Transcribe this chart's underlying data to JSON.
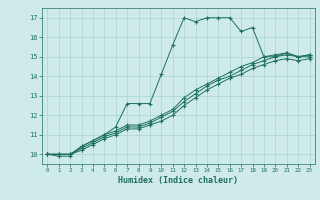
{
  "xlabel": "Humidex (Indice chaleur)",
  "bg_color": "#ceeaea",
  "grid_color": "#aad4d4",
  "line_color": "#1e7060",
  "xlim": [
    -0.5,
    23.5
  ],
  "ylim": [
    9.5,
    17.5
  ],
  "xticks": [
    0,
    1,
    2,
    3,
    4,
    5,
    6,
    7,
    8,
    9,
    10,
    11,
    12,
    13,
    14,
    15,
    16,
    17,
    18,
    19,
    20,
    21,
    22,
    23
  ],
  "yticks": [
    10,
    11,
    12,
    13,
    14,
    15,
    16,
    17
  ],
  "line1_x": [
    0,
    1,
    2,
    3,
    4,
    5,
    6,
    7,
    8,
    9,
    10,
    11,
    12,
    13,
    14,
    15,
    16,
    17,
    18,
    19,
    20,
    21,
    22,
    23
  ],
  "line1_y": [
    10.0,
    9.9,
    9.9,
    10.4,
    10.7,
    11.0,
    11.4,
    12.6,
    12.6,
    12.6,
    14.1,
    15.6,
    17.0,
    16.8,
    17.0,
    17.0,
    17.0,
    16.3,
    16.5,
    15.0,
    15.0,
    15.2,
    15.0,
    15.1
  ],
  "line2_x": [
    0,
    1,
    2,
    3,
    4,
    5,
    6,
    7,
    8,
    9,
    10,
    11,
    12,
    13,
    14,
    15,
    16,
    17,
    18,
    19,
    20,
    21,
    22,
    23
  ],
  "line2_y": [
    10.0,
    10.0,
    10.0,
    10.4,
    10.7,
    11.0,
    11.2,
    11.5,
    11.5,
    11.7,
    12.0,
    12.3,
    12.9,
    13.3,
    13.6,
    13.9,
    14.2,
    14.5,
    14.7,
    15.0,
    15.1,
    15.2,
    15.0,
    15.1
  ],
  "line3_x": [
    0,
    1,
    2,
    3,
    4,
    5,
    6,
    7,
    8,
    9,
    10,
    11,
    12,
    13,
    14,
    15,
    16,
    17,
    18,
    19,
    20,
    21,
    22,
    23
  ],
  "line3_y": [
    10.0,
    10.0,
    10.0,
    10.3,
    10.6,
    10.9,
    11.1,
    11.4,
    11.4,
    11.6,
    11.9,
    12.2,
    12.7,
    13.1,
    13.5,
    13.8,
    14.0,
    14.3,
    14.6,
    14.8,
    15.0,
    15.1,
    15.0,
    15.0
  ],
  "line4_x": [
    0,
    1,
    2,
    3,
    4,
    5,
    6,
    7,
    8,
    9,
    10,
    11,
    12,
    13,
    14,
    15,
    16,
    17,
    18,
    19,
    20,
    21,
    22,
    23
  ],
  "line4_y": [
    10.0,
    10.0,
    10.0,
    10.2,
    10.5,
    10.8,
    11.0,
    11.3,
    11.3,
    11.5,
    11.7,
    12.0,
    12.5,
    12.9,
    13.3,
    13.6,
    13.9,
    14.1,
    14.4,
    14.6,
    14.8,
    14.9,
    14.8,
    14.9
  ]
}
